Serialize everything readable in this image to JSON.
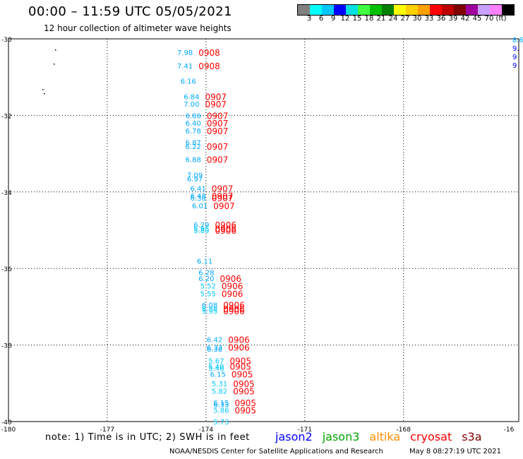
{
  "header": {
    "title": "00:00 – 11:59 UTC 05/05/2021",
    "subtitle": "12 hour collection of altimeter wave heights"
  },
  "color_scale": {
    "swatches": [
      "#808080",
      "#00ffff",
      "#00c8ff",
      "#0000ff",
      "#00e0e0",
      "#40ff40",
      "#00c000",
      "#008000",
      "#ffff00",
      "#ffd000",
      "#ffa000",
      "#ff0000",
      "#c00000",
      "#800000",
      "#a000a0",
      "#c8a0ff",
      "#ff80ff",
      "#000000"
    ],
    "labels": [
      "3",
      "6",
      "9",
      "12",
      "15",
      "18",
      "21",
      "24",
      "27",
      "30",
      "33",
      "36",
      "39",
      "42",
      "45",
      "70",
      "(ft)"
    ]
  },
  "axes": {
    "lat_labels": [
      "-30",
      "-32",
      "-34",
      "-36",
      "-38",
      "-40"
    ],
    "lon_labels": [
      "-180",
      "-177",
      "-174",
      "-171",
      "-168",
      "-16"
    ]
  },
  "observations": [
    {
      "lat": -30.35,
      "lon": -174.4,
      "swh": "7.98",
      "time": "0908"
    },
    {
      "lat": -30.7,
      "lon": -174.4,
      "swh": "7.41",
      "time": "0908"
    },
    {
      "lat": -31.1,
      "lon": -174.3,
      "swh": "6.16",
      "time": ""
    },
    {
      "lat": -31.5,
      "lon": -174.2,
      "swh": "6.84",
      "time": "0907"
    },
    {
      "lat": -31.7,
      "lon": -174.2,
      "swh": "7.00",
      "time": "0907"
    },
    {
      "lat": -32.0,
      "lon": -174.15,
      "swh": "6.86",
      "time": "0907"
    },
    {
      "lat": -32.2,
      "lon": -174.15,
      "swh": "6.40",
      "time": "0907"
    },
    {
      "lat": -32.4,
      "lon": -174.15,
      "swh": "6.78",
      "time": "0907"
    },
    {
      "lat": -32.7,
      "lon": -174.15,
      "swh": "6.87",
      "time": ""
    },
    {
      "lat": -32.8,
      "lon": -174.15,
      "swh": "6.22",
      "time": "0907"
    },
    {
      "lat": -33.15,
      "lon": -174.15,
      "swh": "6.88",
      "time": "0907"
    },
    {
      "lat": -33.55,
      "lon": -174.1,
      "swh": "7.09",
      "time": ""
    },
    {
      "lat": -33.65,
      "lon": -174.1,
      "swh": "6.97",
      "time": ""
    },
    {
      "lat": -33.9,
      "lon": -174.0,
      "swh": "6.41",
      "time": "0907"
    },
    {
      "lat": -34.1,
      "lon": -174.0,
      "swh": "6.48",
      "time": "0907"
    },
    {
      "lat": -34.15,
      "lon": -174.0,
      "swh": "6.38",
      "time": "0907"
    },
    {
      "lat": -34.35,
      "lon": -173.95,
      "swh": "6.01",
      "time": "0907"
    },
    {
      "lat": -34.85,
      "lon": -173.9,
      "swh": "6.29",
      "time": "0906"
    },
    {
      "lat": -34.95,
      "lon": -173.9,
      "swh": "5.95",
      "time": "0906"
    },
    {
      "lat": -35.0,
      "lon": -173.9,
      "swh": "5.89",
      "time": "0906"
    },
    {
      "lat": -35.8,
      "lon": -173.8,
      "swh": "6.11",
      "time": ""
    },
    {
      "lat": -36.1,
      "lon": -173.75,
      "swh": "6.28",
      "time": ""
    },
    {
      "lat": -36.25,
      "lon": -173.75,
      "swh": "6.20",
      "time": "0906"
    },
    {
      "lat": -36.45,
      "lon": -173.7,
      "swh": "5.52",
      "time": "0906"
    },
    {
      "lat": -36.65,
      "lon": -173.7,
      "swh": "5.55",
      "time": "0906"
    },
    {
      "lat": -36.95,
      "lon": -173.65,
      "swh": "6.08",
      "time": "0906"
    },
    {
      "lat": -37.05,
      "lon": -173.65,
      "swh": "5.88",
      "time": "0906"
    },
    {
      "lat": -37.1,
      "lon": -173.65,
      "swh": "5.95",
      "time": "0906"
    },
    {
      "lat": -37.85,
      "lon": -173.5,
      "swh": "6.42",
      "time": "0906"
    },
    {
      "lat": -38.05,
      "lon": -173.5,
      "swh": "6.33",
      "time": "0906"
    },
    {
      "lat": -38.1,
      "lon": -173.5,
      "swh": "6.38",
      "time": ""
    },
    {
      "lat": -38.4,
      "lon": -173.45,
      "swh": "5.67",
      "time": "0905"
    },
    {
      "lat": -38.55,
      "lon": -173.45,
      "swh": "5.40",
      "time": "0905"
    },
    {
      "lat": -38.6,
      "lon": -173.45,
      "swh": "5.46",
      "time": ""
    },
    {
      "lat": -38.75,
      "lon": -173.4,
      "swh": "6.15",
      "time": "0905"
    },
    {
      "lat": -39.0,
      "lon": -173.35,
      "swh": "5.31",
      "time": "0905"
    },
    {
      "lat": -39.2,
      "lon": -173.35,
      "swh": "5.82",
      "time": "0905"
    },
    {
      "lat": -39.5,
      "lon": -173.3,
      "swh": "6.15",
      "time": "0905"
    },
    {
      "lat": -39.55,
      "lon": -173.3,
      "swh": "6.33",
      "time": ""
    },
    {
      "lat": -39.7,
      "lon": -173.3,
      "swh": "5.86",
      "time": "0905"
    },
    {
      "lat": -40.0,
      "lon": -173.3,
      "swh": "5.73",
      "time": ""
    }
  ],
  "edge_values": [
    "8.6",
    "9.",
    "9",
    "9"
  ],
  "notes": {
    "note": "note:  1) Time is in UTC;  2) SWH is in feet",
    "footer": "NOAA/NESDIS Center for Satellite Applications and Research",
    "footer_date": "May  8 08:27:19 UTC 2021"
  },
  "satellites": [
    {
      "name": "jason2",
      "color": "#0000ff"
    },
    {
      "name": "jason3",
      "color": "#00a000"
    },
    {
      "name": "altika",
      "color": "#ff8c00"
    },
    {
      "name": "cryosat",
      "color": "#ff0000"
    },
    {
      "name": "s3a",
      "color": "#800000"
    }
  ]
}
